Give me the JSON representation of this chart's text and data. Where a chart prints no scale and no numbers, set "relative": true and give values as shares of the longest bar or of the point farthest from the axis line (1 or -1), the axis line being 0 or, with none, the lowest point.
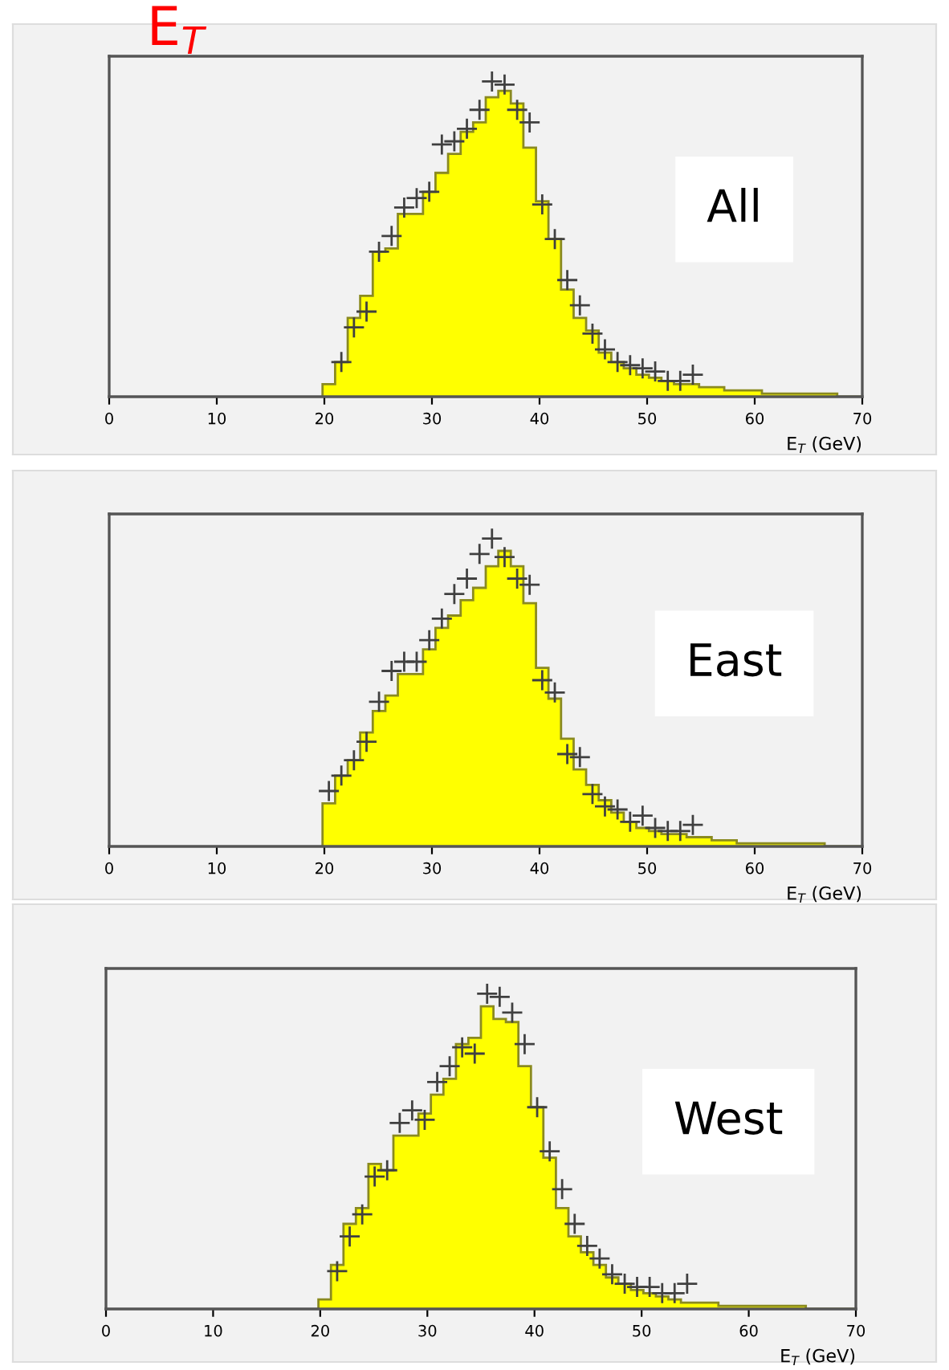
{
  "chart_data": [
    {
      "type": "histogram",
      "title": "E$_{T}$",
      "xlabel": "E$_{T}$ (GeV)",
      "relative": true,
      "xlim": [
        0,
        70
      ],
      "xticks": [
        0,
        10,
        20,
        30,
        40,
        50,
        60,
        70
      ],
      "grid": false,
      "legend": false,
      "marker": "cross",
      "annotations": [
        "All"
      ],
      "bins": [
        19.83,
        21,
        22.17,
        23.33,
        24.5,
        25.67,
        26.83,
        28,
        29.17,
        30.33,
        31.5,
        32.67,
        33.83,
        35,
        36.17,
        37.33,
        38.5,
        39.67,
        40.83,
        42,
        43.17,
        44.33,
        45.5,
        46.67,
        47.83,
        49,
        50.17,
        51.33,
        52.5,
        53.67,
        54.83,
        56,
        57.17,
        58.33,
        59.5,
        60.67,
        61.83,
        63,
        64.17,
        65.33,
        66.5,
        67.67,
        68.83,
        70
      ],
      "series": [
        {
          "color": "#ffff00",
          "values": [
            0.04,
            0.11,
            0.25,
            0.32,
            0.46,
            0.47,
            0.58,
            0.58,
            0.65,
            0.71,
            0.77,
            0.84,
            0.87,
            0.95,
            0.97,
            0.93,
            0.79,
            0.62,
            0.5,
            0.34,
            0.25,
            0.21,
            0.14,
            0.11,
            0.09,
            0.07,
            0.06,
            0.05,
            0.04,
            0.04,
            0.03,
            0.03,
            0.02,
            0.02,
            0.02,
            0.01,
            0.01,
            0.01,
            0.01,
            0.01,
            0.01,
            0,
            0
          ]
        },
        {
          "type": "scatter",
          "color": "#404040",
          "x": [
            21.58,
            22.75,
            23.92,
            25.08,
            26.25,
            27.42,
            28.58,
            29.75,
            30.92,
            32.08,
            33.25,
            34.42,
            35.58,
            36.75,
            37.92,
            39.08,
            40.25,
            41.42,
            42.58,
            43.75,
            44.92,
            46.08,
            47.25,
            48.42,
            49.58,
            50.75,
            51.92,
            53.08,
            54.25
          ],
          "values": [
            0.11,
            0.22,
            0.27,
            0.46,
            0.51,
            0.6,
            0.63,
            0.65,
            0.8,
            0.81,
            0.85,
            0.91,
            1.0,
            0.99,
            0.91,
            0.87,
            0.61,
            0.5,
            0.37,
            0.29,
            0.2,
            0.15,
            0.11,
            0.1,
            0.09,
            0.08,
            0.05,
            0.05,
            0.07
          ]
        }
      ]
    },
    {
      "type": "histogram",
      "xlabel": "E$_{T}$ (GeV)",
      "relative": true,
      "xlim": [
        0,
        70
      ],
      "xticks": [
        0,
        10,
        20,
        30,
        40,
        50,
        60,
        70
      ],
      "grid": false,
      "legend": false,
      "marker": "cross",
      "annotations": [
        "East"
      ],
      "bins": [
        19.83,
        21,
        22.17,
        23.33,
        24.5,
        25.67,
        26.83,
        28,
        29.17,
        30.33,
        31.5,
        32.67,
        33.83,
        35,
        36.17,
        37.33,
        38.5,
        39.67,
        40.83,
        42,
        43.17,
        44.33,
        45.5,
        46.67,
        47.83,
        49,
        50.17,
        51.33,
        52.5,
        53.67,
        54.83,
        56,
        57.17,
        58.33,
        59.5,
        60.67,
        61.83,
        63,
        64.17,
        65.33,
        66.5,
        67.67,
        68.83,
        70
      ],
      "series": [
        {
          "color": "#ffff00",
          "values": [
            0.14,
            0.23,
            0.28,
            0.37,
            0.44,
            0.49,
            0.56,
            0.56,
            0.64,
            0.71,
            0.75,
            0.8,
            0.84,
            0.91,
            0.96,
            0.91,
            0.79,
            0.58,
            0.48,
            0.35,
            0.25,
            0.2,
            0.15,
            0.11,
            0.08,
            0.06,
            0.05,
            0.04,
            0.04,
            0.03,
            0.03,
            0.02,
            0.02,
            0.01,
            0.01,
            0.01,
            0.01,
            0.01,
            0.01,
            0.01,
            0,
            0,
            0
          ]
        },
        {
          "type": "scatter",
          "color": "#404040",
          "x": [
            20.42,
            21.58,
            22.75,
            23.92,
            25.08,
            26.25,
            27.42,
            28.58,
            29.75,
            30.92,
            32.08,
            33.25,
            34.42,
            35.58,
            36.75,
            37.92,
            39.08,
            40.25,
            41.42,
            42.58,
            43.75,
            44.92,
            46.08,
            47.25,
            48.42,
            49.58,
            50.75,
            51.92,
            53.08,
            54.25
          ],
          "values": [
            0.18,
            0.23,
            0.28,
            0.34,
            0.47,
            0.57,
            0.6,
            0.6,
            0.67,
            0.74,
            0.82,
            0.87,
            0.95,
            1.0,
            0.94,
            0.87,
            0.85,
            0.54,
            0.5,
            0.3,
            0.29,
            0.17,
            0.13,
            0.12,
            0.08,
            0.1,
            0.06,
            0.05,
            0.05,
            0.07
          ]
        }
      ]
    },
    {
      "type": "histogram",
      "xlabel": "E$_{T}$ (GeV)",
      "relative": true,
      "xlim": [
        0,
        70
      ],
      "xticks": [
        0,
        10,
        20,
        30,
        40,
        50,
        60,
        70
      ],
      "grid": false,
      "legend": false,
      "marker": "cross",
      "annotations": [
        "West"
      ],
      "bins": [
        19.83,
        21,
        22.17,
        23.33,
        24.5,
        25.67,
        26.83,
        28,
        29.17,
        30.33,
        31.5,
        32.67,
        33.83,
        35,
        36.17,
        37.33,
        38.5,
        39.67,
        40.83,
        42,
        43.17,
        44.33,
        45.5,
        46.67,
        47.83,
        49,
        50.17,
        51.33,
        52.5,
        53.67,
        54.83,
        56,
        57.17,
        58.33,
        59.5,
        60.67,
        61.83,
        63,
        64.17,
        65.33,
        66.5,
        67.67,
        68.83,
        70
      ],
      "series": [
        {
          "color": "#ffff00",
          "values": [
            0.03,
            0.14,
            0.27,
            0.32,
            0.46,
            0.44,
            0.55,
            0.55,
            0.62,
            0.68,
            0.73,
            0.84,
            0.86,
            0.96,
            0.92,
            0.91,
            0.77,
            0.64,
            0.48,
            0.32,
            0.23,
            0.18,
            0.14,
            0.1,
            0.08,
            0.06,
            0.05,
            0.04,
            0.03,
            0.02,
            0.02,
            0.02,
            0.01,
            0.01,
            0.01,
            0.01,
            0.01,
            0.01,
            0.01,
            0,
            0,
            0,
            0
          ]
        },
        {
          "type": "scatter",
          "color": "#404040",
          "x": [
            21.58,
            22.75,
            23.92,
            25.08,
            26.25,
            27.42,
            28.58,
            29.75,
            30.92,
            32.08,
            33.25,
            34.42,
            35.58,
            36.75,
            37.92,
            39.08,
            40.25,
            41.42,
            42.58,
            43.75,
            44.92,
            46.08,
            47.25,
            48.42,
            49.58,
            50.75,
            51.92,
            53.08,
            54.25
          ],
          "values": [
            0.12,
            0.23,
            0.3,
            0.42,
            0.44,
            0.59,
            0.63,
            0.6,
            0.72,
            0.77,
            0.83,
            0.81,
            1.0,
            0.99,
            0.94,
            0.84,
            0.64,
            0.5,
            0.38,
            0.27,
            0.2,
            0.16,
            0.11,
            0.08,
            0.07,
            0.07,
            0.05,
            0.05,
            0.08
          ]
        }
      ]
    }
  ]
}
